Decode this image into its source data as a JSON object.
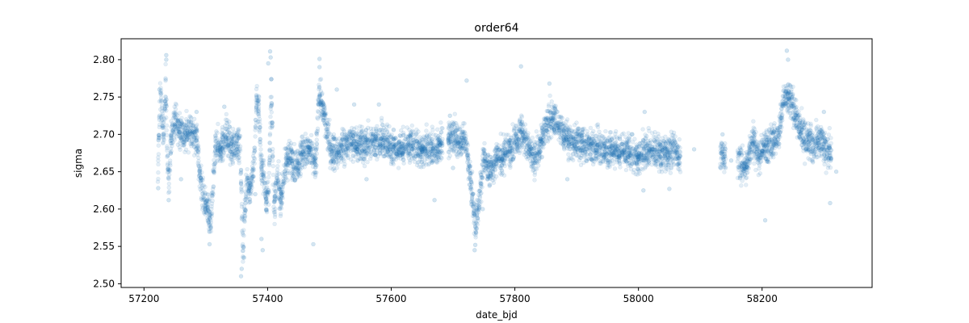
{
  "chart_data": {
    "type": "scatter",
    "title": "order64",
    "xlabel": "date_bjd",
    "ylabel": "sigma",
    "xlim": [
      57163,
      58378
    ],
    "ylim": [
      2.495,
      2.828
    ],
    "xticks": [
      57200,
      57400,
      57600,
      57800,
      58000,
      58200
    ],
    "xtick_labels": [
      "57200",
      "57400",
      "57600",
      "57800",
      "58000",
      "58200"
    ],
    "yticks": [
      2.5,
      2.55,
      2.6,
      2.65,
      2.7,
      2.75,
      2.8
    ],
    "ytick_labels": [
      "2.50",
      "2.55",
      "2.60",
      "2.65",
      "2.70",
      "2.75",
      "2.80"
    ],
    "grid": false,
    "marker_color": "#1f77b4",
    "marker_alpha": 0.12,
    "series": [
      {
        "trend": [
          [
            57222,
            2.625
          ],
          [
            57226,
            2.755
          ],
          [
            57232,
            2.7
          ],
          [
            57235,
            2.77
          ],
          [
            57238,
            2.66
          ],
          [
            57241,
            2.635
          ],
          [
            57244,
            2.7
          ],
          [
            57250,
            2.72
          ],
          [
            57258,
            2.705
          ],
          [
            57266,
            2.7
          ],
          [
            57274,
            2.705
          ],
          [
            57282,
            2.7
          ],
          [
            57286,
            2.695
          ],
          [
            57290,
            2.645
          ],
          [
            57295,
            2.62
          ],
          [
            57300,
            2.605
          ],
          [
            57305,
            2.59
          ],
          [
            57308,
            2.575
          ],
          [
            57316,
            2.69
          ],
          [
            57325,
            2.68
          ],
          [
            57333,
            2.7
          ],
          [
            57342,
            2.68
          ],
          [
            57350,
            2.69
          ],
          [
            57356,
            2.68
          ],
          [
            57360,
            2.545
          ],
          [
            57366,
            2.64
          ],
          [
            57372,
            2.625
          ],
          [
            57378,
            2.66
          ],
          [
            57382,
            2.745
          ],
          [
            57386,
            2.735
          ],
          [
            57390,
            2.655
          ],
          [
            57394,
            2.64
          ],
          [
            57398,
            2.61
          ],
          [
            57402,
            2.63
          ],
          [
            57406,
            2.77
          ],
          [
            57410,
            2.6
          ],
          [
            57416,
            2.64
          ],
          [
            57422,
            2.61
          ],
          [
            57430,
            2.665
          ],
          [
            57438,
            2.67
          ],
          [
            57446,
            2.655
          ],
          [
            57455,
            2.675
          ],
          [
            57464,
            2.68
          ],
          [
            57472,
            2.67
          ],
          [
            57478,
            2.66
          ],
          [
            57483,
            2.755
          ],
          [
            57490,
            2.73
          ],
          [
            57496,
            2.705
          ],
          [
            57502,
            2.68
          ],
          [
            57512,
            2.675
          ],
          [
            57530,
            2.69
          ],
          [
            57550,
            2.685
          ],
          [
            57570,
            2.69
          ],
          [
            57590,
            2.69
          ],
          [
            57610,
            2.68
          ],
          [
            57630,
            2.685
          ],
          [
            57650,
            2.68
          ],
          [
            57670,
            2.68
          ],
          [
            57678,
            2.685
          ],
          [
            57695,
            2.695
          ],
          [
            57700,
            2.7
          ],
          [
            57712,
            2.69
          ],
          [
            57720,
            2.695
          ],
          [
            57725,
            2.66
          ],
          [
            57730,
            2.63
          ],
          [
            57736,
            2.575
          ],
          [
            57742,
            2.61
          ],
          [
            57750,
            2.67
          ],
          [
            57760,
            2.65
          ],
          [
            57770,
            2.67
          ],
          [
            57780,
            2.67
          ],
          [
            57790,
            2.68
          ],
          [
            57800,
            2.69
          ],
          [
            57810,
            2.705
          ],
          [
            57820,
            2.685
          ],
          [
            57830,
            2.665
          ],
          [
            57840,
            2.68
          ],
          [
            57850,
            2.71
          ],
          [
            57860,
            2.725
          ],
          [
            57870,
            2.71
          ],
          [
            57880,
            2.7
          ],
          [
            57890,
            2.69
          ],
          [
            57900,
            2.69
          ],
          [
            57920,
            2.685
          ],
          [
            57940,
            2.68
          ],
          [
            57960,
            2.68
          ],
          [
            57980,
            2.675
          ],
          [
            58000,
            2.67
          ],
          [
            58020,
            2.68
          ],
          [
            58040,
            2.675
          ],
          [
            58060,
            2.68
          ],
          [
            58065,
            2.67
          ],
          [
            58140,
            2.67
          ],
          [
            58165,
            2.66
          ],
          [
            58175,
            2.66
          ],
          [
            58185,
            2.695
          ],
          [
            58195,
            2.67
          ],
          [
            58205,
            2.685
          ],
          [
            58215,
            2.69
          ],
          [
            58225,
            2.695
          ],
          [
            58235,
            2.745
          ],
          [
            58245,
            2.75
          ],
          [
            58255,
            2.72
          ],
          [
            58265,
            2.7
          ],
          [
            58275,
            2.69
          ],
          [
            58285,
            2.685
          ],
          [
            58295,
            2.695
          ],
          [
            58305,
            2.675
          ],
          [
            58312,
            2.68
          ]
        ],
        "spread": 0.016
      }
    ],
    "points": [
      [
        57225,
        2.76
      ],
      [
        57223,
        2.628
      ],
      [
        57236,
        2.806
      ],
      [
        57236,
        2.8
      ],
      [
        57240,
        2.612
      ],
      [
        57306,
        2.553
      ],
      [
        57357,
        2.51
      ],
      [
        57358,
        2.52
      ],
      [
        57362,
        2.535
      ],
      [
        57404,
        2.811
      ],
      [
        57405,
        2.803
      ],
      [
        57401,
        2.795
      ],
      [
        57338,
        2.71
      ],
      [
        57392,
        2.545
      ],
      [
        57390,
        2.56
      ],
      [
        57474,
        2.553
      ],
      [
        57484,
        2.79
      ],
      [
        57484,
        2.801
      ],
      [
        57512,
        2.76
      ],
      [
        57576,
        2.705
      ],
      [
        57580,
        2.74
      ],
      [
        57722,
        2.772
      ],
      [
        57735,
        2.545
      ],
      [
        57736,
        2.552
      ],
      [
        57748,
        2.6
      ],
      [
        57810,
        2.791
      ],
      [
        57856,
        2.768
      ],
      [
        58010,
        2.73
      ],
      [
        58008,
        2.625
      ],
      [
        58050,
        2.627
      ],
      [
        58136,
        2.7
      ],
      [
        58150,
        2.665
      ],
      [
        58205,
        2.585
      ],
      [
        58240,
        2.812
      ],
      [
        58242,
        2.8
      ],
      [
        58300,
        2.73
      ],
      [
        58310,
        2.608
      ],
      [
        58320,
        2.65
      ],
      [
        57330,
        2.737
      ],
      [
        57380,
        2.62
      ],
      [
        57260,
        2.64
      ],
      [
        57285,
        2.73
      ],
      [
        57560,
        2.64
      ],
      [
        57670,
        2.612
      ],
      [
        57540,
        2.74
      ],
      [
        57885,
        2.64
      ],
      [
        58090,
        2.68
      ],
      [
        57990,
        2.7
      ],
      [
        57700,
        2.655
      ],
      [
        57695,
        2.725
      ]
    ],
    "gaps": [
      [
        57683,
        57692
      ],
      [
        58068,
        58132
      ],
      [
        58142,
        58160
      ]
    ]
  }
}
